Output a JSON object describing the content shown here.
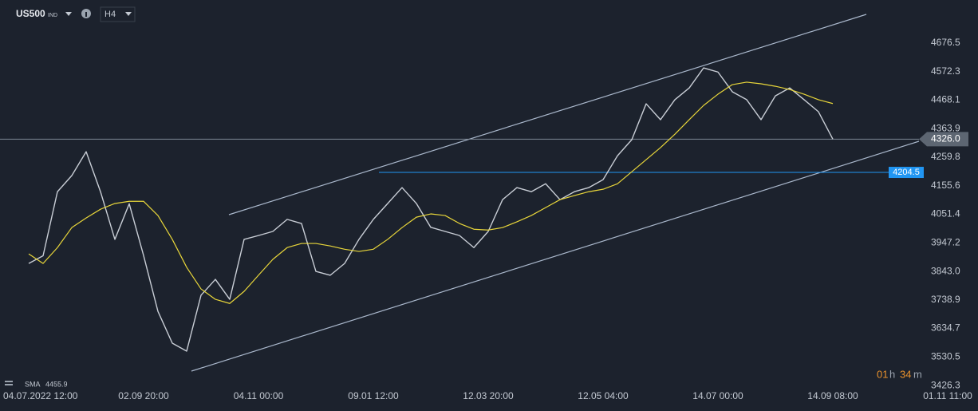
{
  "toolbar": {
    "symbol": "US500",
    "market": "IND",
    "timeframe": "H4"
  },
  "countdown": {
    "hours": "01",
    "hours_unit": "h",
    "minutes": "34",
    "minutes_unit": "m"
  },
  "chart_data": {
    "type": "line",
    "categories": [
      "04.07.2022 12:00",
      null,
      null,
      null,
      null,
      null,
      null,
      null,
      "02.09 20:00",
      null,
      null,
      null,
      null,
      null,
      null,
      null,
      "04.11 00:00",
      null,
      null,
      null,
      null,
      null,
      null,
      null,
      "09.01 12:00",
      null,
      null,
      null,
      null,
      null,
      null,
      null,
      "12.03 20:00",
      null,
      null,
      null,
      null,
      null,
      null,
      null,
      "12.05 04:00",
      null,
      null,
      null,
      null,
      null,
      null,
      null,
      "14.07 00:00",
      null,
      null,
      null,
      null,
      null,
      null,
      null,
      "14.09 08:00",
      null,
      null,
      null,
      null,
      null,
      null,
      null,
      "01.11 11:00"
    ],
    "series": [
      {
        "name": "US500",
        "color": "#c9ced6",
        "values": [
          3872,
          3900,
          4134,
          4193,
          4280,
          4134,
          3960,
          4090,
          3901,
          3697,
          3581,
          3552,
          3756,
          3814,
          3741,
          3960,
          3974,
          3989,
          4033,
          4018,
          3843,
          3829,
          3872,
          3960,
          4033,
          4091,
          4149,
          4091,
          4004,
          3989,
          3974,
          3930,
          3989,
          4105,
          4149,
          4134,
          4163,
          4105,
          4134,
          4149,
          4178,
          4265,
          4324,
          4455,
          4397,
          4470,
          4513,
          4586,
          4571,
          4499,
          4470,
          4397,
          4484,
          4513,
          4470,
          4426,
          4326,
          null,
          null,
          null,
          null,
          null,
          null,
          null,
          null
        ]
      },
      {
        "name": "SMA",
        "color": "#e8d63a",
        "values": [
          3907,
          3872,
          3930,
          4003,
          4038,
          4070,
          4091,
          4099,
          4099,
          4047,
          3960,
          3858,
          3779,
          3741,
          3726,
          3770,
          3829,
          3887,
          3930,
          3945,
          3945,
          3936,
          3924,
          3916,
          3924,
          3960,
          4003,
          4041,
          4053,
          4047,
          4018,
          3997,
          3994,
          4003,
          4024,
          4047,
          4076,
          4105,
          4120,
          4134,
          4143,
          4163,
          4207,
          4251,
          4295,
          4344,
          4397,
          4449,
          4490,
          4525,
          4534,
          4528,
          4519,
          4507,
          4490,
          4470,
          4455.9,
          null,
          null,
          null,
          null,
          null,
          null,
          null,
          null
        ],
        "value_labels": [
          null,
          null,
          null,
          null,
          null,
          null,
          null,
          null,
          null,
          null,
          null,
          null,
          null,
          null,
          null,
          null,
          null,
          null,
          null,
          null,
          null,
          null,
          null,
          null,
          null,
          null,
          null,
          null,
          null,
          null,
          null,
          null,
          null,
          null,
          null,
          null,
          null,
          null,
          null,
          null,
          null,
          null,
          null,
          null,
          null,
          null,
          null,
          null,
          null,
          null,
          null,
          null,
          null,
          null,
          null,
          null,
          "4455.9",
          null,
          null,
          null,
          null,
          null,
          null,
          null,
          null
        ]
      }
    ],
    "ylim": [
      3412,
      4834
    ],
    "yticks": [
      4676.5,
      4572.3,
      4468.1,
      4363.9,
      4259.8,
      4155.6,
      4051.4,
      3947.2,
      {
        "value": 3843.0,
        "label": "3843.0"
      },
      3738.9,
      3634.7,
      3530.5,
      3426.3
    ],
    "current_price": {
      "value": 4326.0,
      "label": "4326.0"
    },
    "level_line": {
      "value": 4204.5,
      "label": "4204.5",
      "color": "#2196f3"
    },
    "grid": false
  }
}
